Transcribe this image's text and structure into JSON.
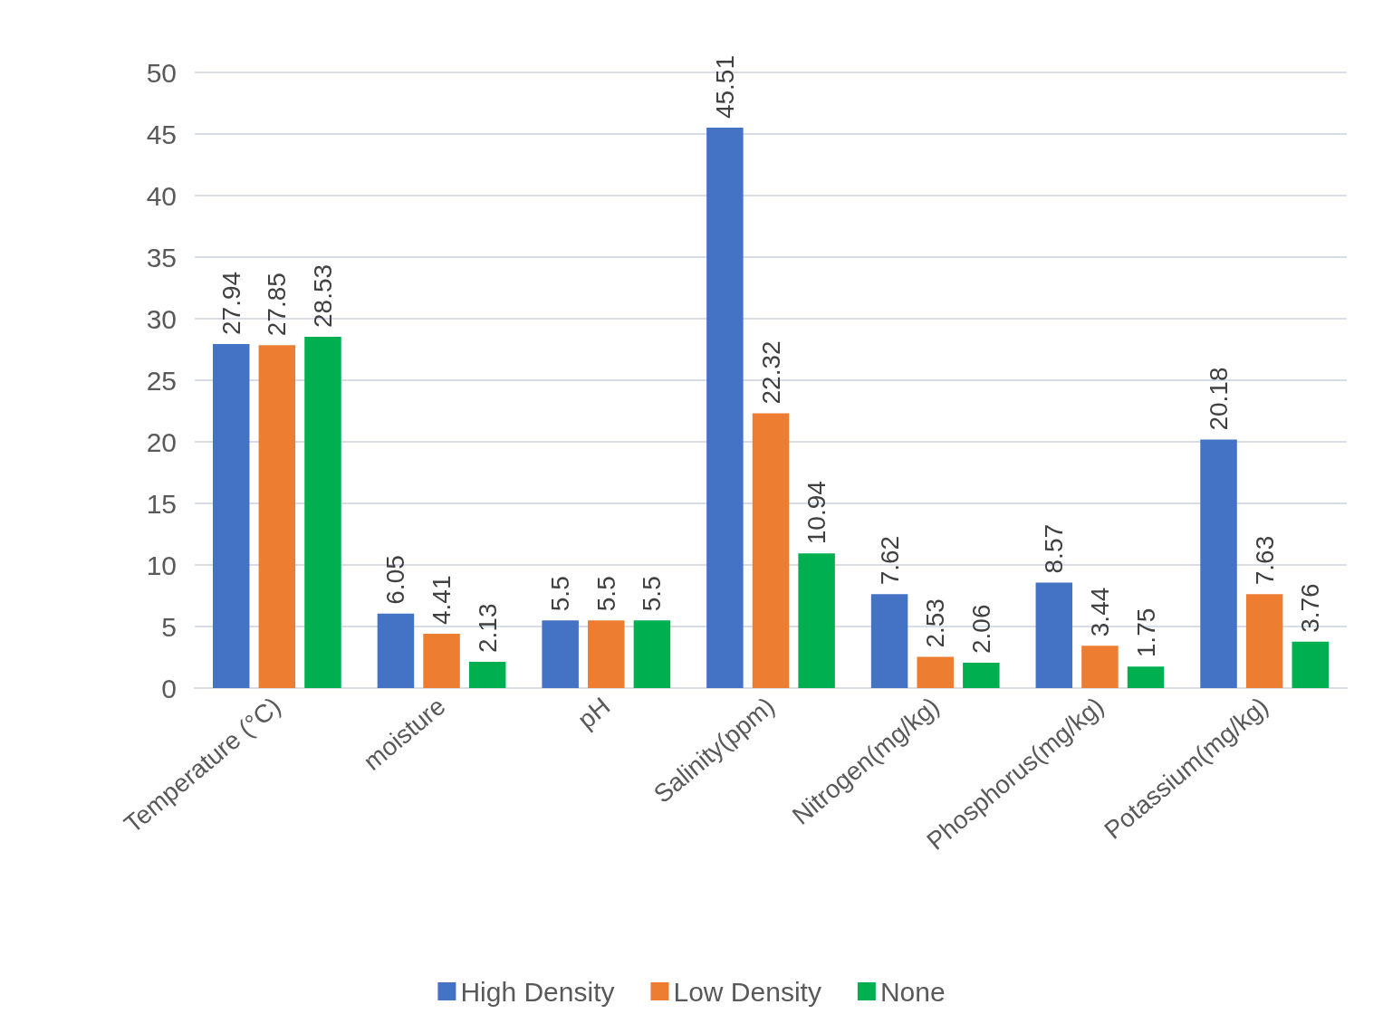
{
  "chart_data": {
    "type": "bar",
    "categories": [
      "Temperature (°C)",
      "moisture",
      "pH",
      "Salinity(ppm)",
      "Nitrogen(mg/kg)",
      "Phosphorus(mg/kg)",
      "Potassium(mg/kg)"
    ],
    "series": [
      {
        "name": "High Density",
        "color": "#4472c4",
        "values": [
          27.94,
          6.05,
          5.5,
          45.51,
          7.62,
          8.57,
          20.18
        ]
      },
      {
        "name": "Low Density",
        "color": "#ed7d31",
        "values": [
          27.85,
          4.41,
          5.5,
          22.32,
          2.53,
          3.44,
          7.63
        ]
      },
      {
        "name": "None",
        "color": "#00b050",
        "values": [
          28.53,
          2.13,
          5.5,
          10.94,
          2.06,
          1.75,
          3.76
        ]
      }
    ],
    "ylim": [
      0,
      50
    ],
    "yticks": [
      0,
      5,
      10,
      15,
      20,
      25,
      30,
      35,
      40,
      45,
      50
    ],
    "grid": "y",
    "legend": "bottom",
    "data_labels": true
  }
}
